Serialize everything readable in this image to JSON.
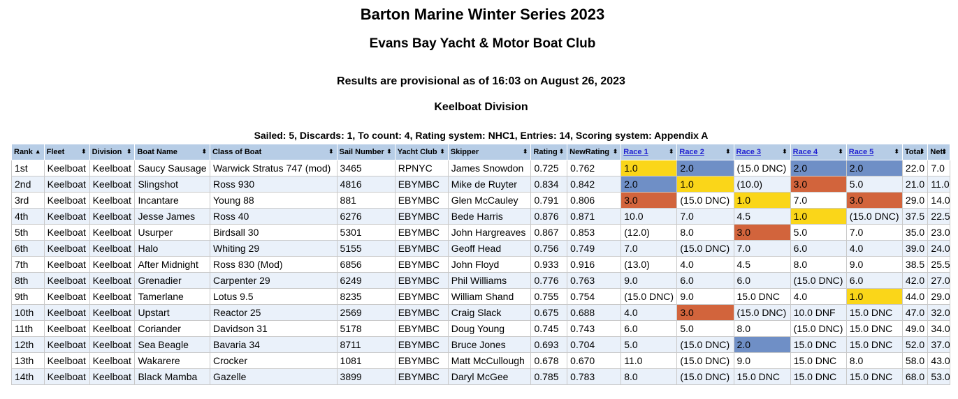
{
  "title": "Barton Marine Winter Series 2023",
  "club": "Evans Bay Yacht & Motor Boat Club",
  "status": "Results are provisional as of 16:03 on August 26, 2023",
  "division": "Keelboat Division",
  "summary": "Sailed: 5, Discards: 1, To count: 4, Rating system: NHC1, Entries: 14, Scoring system: Appendix A",
  "columns": [
    "Rank",
    "Fleet",
    "Division",
    "Boat Name",
    "Class of Boat",
    "Sail Number",
    "Yacht Club",
    "Skipper",
    "Rating",
    "NewRating",
    "Race 1",
    "Race 2",
    "Race 3",
    "Race 4",
    "Race 5",
    "Total",
    "Nett"
  ],
  "sort_icons": {
    "active": "▲",
    "inactive": "⬍"
  },
  "highlight_colors": {
    "first": "#fad619",
    "second": "#6f8fc6",
    "third": "#d2643c"
  },
  "rows": [
    {
      "rank": "1st",
      "fleet": "Keelboat",
      "division": "Keelboat",
      "boat": "Saucy Sausage",
      "class": "Warwick Stratus 747 (mod)",
      "sail": "3465",
      "club": "RPNYC",
      "skipper": "James Snowdon",
      "rating": "0.725",
      "newrating": "0.762",
      "races": [
        "1.0",
        "2.0",
        "(15.0 DNC)",
        "2.0",
        "2.0"
      ],
      "hl": [
        "gold",
        "silver",
        "",
        "silver",
        "silver"
      ],
      "total": "22.0",
      "nett": "7.0"
    },
    {
      "rank": "2nd",
      "fleet": "Keelboat",
      "division": "Keelboat",
      "boat": "Slingshot",
      "class": "Ross 930",
      "sail": "4816",
      "club": "EBYMBC",
      "skipper": "Mike de Ruyter",
      "rating": "0.834",
      "newrating": "0.842",
      "races": [
        "2.0",
        "1.0",
        "(10.0)",
        "3.0",
        "5.0"
      ],
      "hl": [
        "silver",
        "gold",
        "",
        "bronze",
        ""
      ],
      "total": "21.0",
      "nett": "11.0"
    },
    {
      "rank": "3rd",
      "fleet": "Keelboat",
      "division": "Keelboat",
      "boat": "Incantare",
      "class": "Young 88",
      "sail": "881",
      "club": "EBYMBC",
      "skipper": "Glen McCauley",
      "rating": "0.791",
      "newrating": "0.806",
      "races": [
        "3.0",
        "(15.0 DNC)",
        "1.0",
        "7.0",
        "3.0"
      ],
      "hl": [
        "bronze",
        "",
        "gold",
        "",
        "bronze"
      ],
      "total": "29.0",
      "nett": "14.0"
    },
    {
      "rank": "4th",
      "fleet": "Keelboat",
      "division": "Keelboat",
      "boat": "Jesse James",
      "class": "Ross 40",
      "sail": "6276",
      "club": "EBYMBC",
      "skipper": "Bede Harris",
      "rating": "0.876",
      "newrating": "0.871",
      "races": [
        "10.0",
        "7.0",
        "4.5",
        "1.0",
        "(15.0 DNC)"
      ],
      "hl": [
        "",
        "",
        "",
        "gold",
        ""
      ],
      "total": "37.5",
      "nett": "22.5"
    },
    {
      "rank": "5th",
      "fleet": "Keelboat",
      "division": "Keelboat",
      "boat": "Usurper",
      "class": "Birdsall 30",
      "sail": "5301",
      "club": "EBYMBC",
      "skipper": "John Hargreaves",
      "rating": "0.867",
      "newrating": "0.853",
      "races": [
        "(12.0)",
        "8.0",
        "3.0",
        "5.0",
        "7.0"
      ],
      "hl": [
        "",
        "",
        "bronze",
        "",
        ""
      ],
      "total": "35.0",
      "nett": "23.0"
    },
    {
      "rank": "6th",
      "fleet": "Keelboat",
      "division": "Keelboat",
      "boat": "Halo",
      "class": "Whiting 29",
      "sail": "5155",
      "club": "EBYMBC",
      "skipper": "Geoff Head",
      "rating": "0.756",
      "newrating": "0.749",
      "races": [
        "7.0",
        "(15.0 DNC)",
        "7.0",
        "6.0",
        "4.0"
      ],
      "hl": [
        "",
        "",
        "",
        "",
        ""
      ],
      "total": "39.0",
      "nett": "24.0"
    },
    {
      "rank": "7th",
      "fleet": "Keelboat",
      "division": "Keelboat",
      "boat": "After Midnight",
      "class": "Ross 830 (Mod)",
      "sail": "6856",
      "club": "EBYMBC",
      "skipper": "John Floyd",
      "rating": "0.933",
      "newrating": "0.916",
      "races": [
        "(13.0)",
        "4.0",
        "4.5",
        "8.0",
        "9.0"
      ],
      "hl": [
        "",
        "",
        "",
        "",
        ""
      ],
      "total": "38.5",
      "nett": "25.5"
    },
    {
      "rank": "8th",
      "fleet": "Keelboat",
      "division": "Keelboat",
      "boat": "Grenadier",
      "class": "Carpenter 29",
      "sail": "6249",
      "club": "EBYMBC",
      "skipper": "Phil Williams",
      "rating": "0.776",
      "newrating": "0.763",
      "races": [
        "9.0",
        "6.0",
        "6.0",
        "(15.0 DNC)",
        "6.0"
      ],
      "hl": [
        "",
        "",
        "",
        "",
        ""
      ],
      "total": "42.0",
      "nett": "27.0"
    },
    {
      "rank": "9th",
      "fleet": "Keelboat",
      "division": "Keelboat",
      "boat": "Tamerlane",
      "class": "Lotus 9.5",
      "sail": "8235",
      "club": "EBYMBC",
      "skipper": "William Shand",
      "rating": "0.755",
      "newrating": "0.754",
      "races": [
        "(15.0 DNC)",
        "9.0",
        "15.0 DNC",
        "4.0",
        "1.0"
      ],
      "hl": [
        "",
        "",
        "",
        "",
        "gold"
      ],
      "total": "44.0",
      "nett": "29.0"
    },
    {
      "rank": "10th",
      "fleet": "Keelboat",
      "division": "Keelboat",
      "boat": "Upstart",
      "class": "Reactor 25",
      "sail": "2569",
      "club": "EBYMBC",
      "skipper": "Craig Slack",
      "rating": "0.675",
      "newrating": "0.688",
      "races": [
        "4.0",
        "3.0",
        "(15.0 DNC)",
        "10.0 DNF",
        "15.0 DNC"
      ],
      "hl": [
        "",
        "bronze",
        "",
        "",
        ""
      ],
      "total": "47.0",
      "nett": "32.0"
    },
    {
      "rank": "11th",
      "fleet": "Keelboat",
      "division": "Keelboat",
      "boat": "Coriander",
      "class": "Davidson 31",
      "sail": "5178",
      "club": "EBYMBC",
      "skipper": "Doug Young",
      "rating": "0.745",
      "newrating": "0.743",
      "races": [
        "6.0",
        "5.0",
        "8.0",
        "(15.0 DNC)",
        "15.0 DNC"
      ],
      "hl": [
        "",
        "",
        "",
        "",
        ""
      ],
      "total": "49.0",
      "nett": "34.0"
    },
    {
      "rank": "12th",
      "fleet": "Keelboat",
      "division": "Keelboat",
      "boat": "Sea Beagle",
      "class": "Bavaria 34",
      "sail": "8711",
      "club": "EBYMBC",
      "skipper": "Bruce Jones",
      "rating": "0.693",
      "newrating": "0.704",
      "races": [
        "5.0",
        "(15.0 DNC)",
        "2.0",
        "15.0 DNC",
        "15.0 DNC"
      ],
      "hl": [
        "",
        "",
        "silver",
        "",
        ""
      ],
      "total": "52.0",
      "nett": "37.0"
    },
    {
      "rank": "13th",
      "fleet": "Keelboat",
      "division": "Keelboat",
      "boat": "Wakarere",
      "class": "Crocker",
      "sail": "1081",
      "club": "EBYMBC",
      "skipper": "Matt McCullough",
      "rating": "0.678",
      "newrating": "0.670",
      "races": [
        "11.0",
        "(15.0 DNC)",
        "9.0",
        "15.0 DNC",
        "8.0"
      ],
      "hl": [
        "",
        "",
        "",
        "",
        ""
      ],
      "total": "58.0",
      "nett": "43.0"
    },
    {
      "rank": "14th",
      "fleet": "Keelboat",
      "division": "Keelboat",
      "boat": "Black Mamba",
      "class": "Gazelle",
      "sail": "3899",
      "club": "EBYMBC",
      "skipper": "Daryl McGee",
      "rating": "0.785",
      "newrating": "0.783",
      "races": [
        "8.0",
        "(15.0 DNC)",
        "15.0 DNC",
        "15.0 DNC",
        "15.0 DNC"
      ],
      "hl": [
        "",
        "",
        "",
        "",
        ""
      ],
      "total": "68.0",
      "nett": "53.0"
    }
  ]
}
